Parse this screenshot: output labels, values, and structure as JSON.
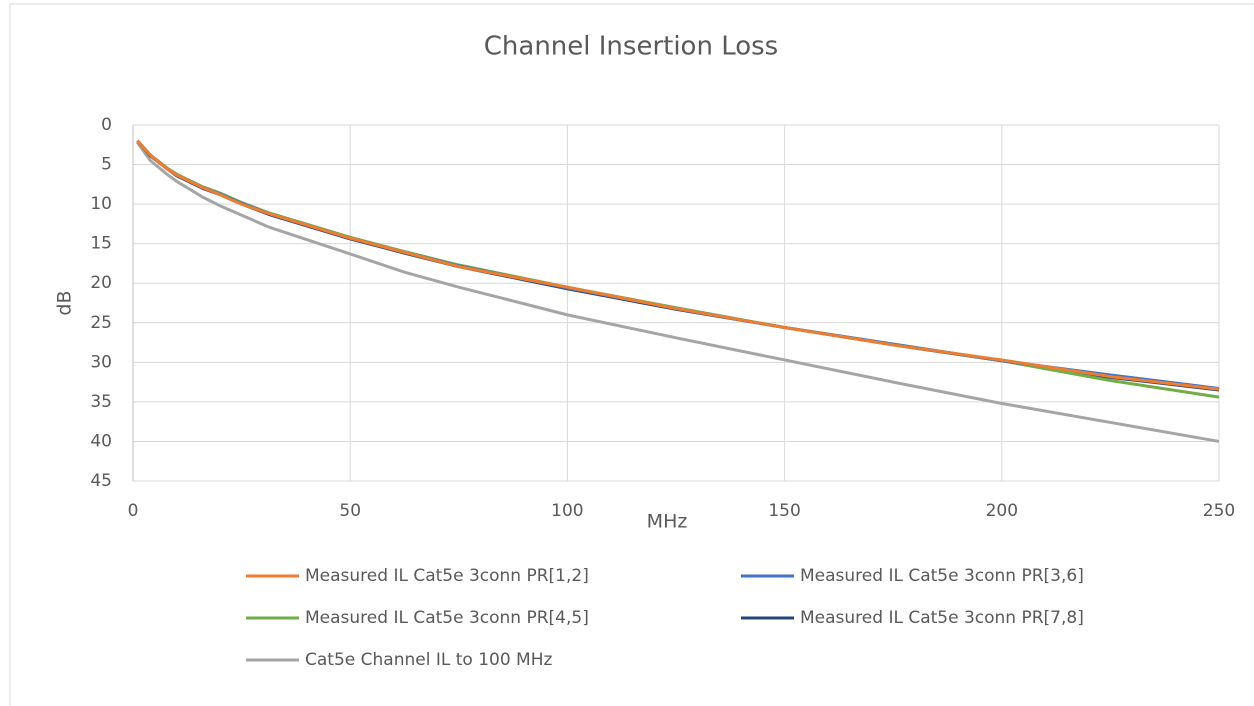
{
  "chart_data": {
    "type": "line",
    "title": "Channel Insertion Loss",
    "x_label": "MHz",
    "y_label": "dB",
    "x": [
      1,
      4,
      8,
      10,
      16,
      20,
      25,
      31.25,
      50,
      62.5,
      75,
      100,
      125,
      150,
      175,
      200,
      225,
      250
    ],
    "series": [
      {
        "name": "Measured IL Cat5e 3conn PR[1,2]",
        "color": "#ed7d31",
        "values": [
          2.0,
          3.8,
          5.6,
          6.3,
          7.9,
          8.8,
          10.0,
          11.2,
          14.3,
          16.1,
          17.9,
          20.5,
          23.2,
          25.6,
          27.8,
          29.7,
          31.8,
          33.4
        ]
      },
      {
        "name": "Measured IL Cat5e 3conn PR[3,6]",
        "color": "#4472c4",
        "values": [
          2.0,
          3.8,
          5.6,
          6.3,
          7.9,
          8.7,
          9.9,
          11.2,
          14.3,
          16.1,
          17.8,
          20.6,
          23.2,
          25.6,
          27.7,
          29.8,
          31.6,
          33.3
        ]
      },
      {
        "name": "Measured IL Cat5e 3conn PR[4,5]",
        "color": "#70ad47",
        "values": [
          2.0,
          3.8,
          5.5,
          6.2,
          7.8,
          8.6,
          9.8,
          11.1,
          14.2,
          16.0,
          17.7,
          20.5,
          23.1,
          25.6,
          27.7,
          29.8,
          32.3,
          34.4
        ]
      },
      {
        "name": "Measured IL Cat5e 3conn PR[7,8]",
        "color": "#264478",
        "values": [
          2.0,
          3.9,
          5.6,
          6.4,
          8.0,
          8.8,
          10.0,
          11.3,
          14.4,
          16.2,
          17.9,
          20.7,
          23.3,
          25.6,
          27.8,
          29.8,
          31.9,
          33.5
        ]
      },
      {
        "name": "Cat5e Channel IL to 100 MHz",
        "color": "#a5a5a5",
        "values": [
          2.2,
          4.5,
          6.3,
          7.1,
          9.1,
          10.2,
          11.4,
          12.9,
          16.3,
          18.6,
          20.5,
          24.0,
          26.9,
          29.7,
          32.5,
          35.2,
          37.6,
          40.0
        ]
      }
    ],
    "xlim": [
      0,
      250
    ],
    "xticks": [
      0,
      50,
      100,
      150,
      200,
      250
    ],
    "ylim": [
      0,
      45
    ],
    "yticks": [
      0,
      5,
      10,
      15,
      20,
      25,
      30,
      35,
      40,
      45
    ],
    "y_inverted": true,
    "grid": true,
    "legend": "bottom"
  }
}
